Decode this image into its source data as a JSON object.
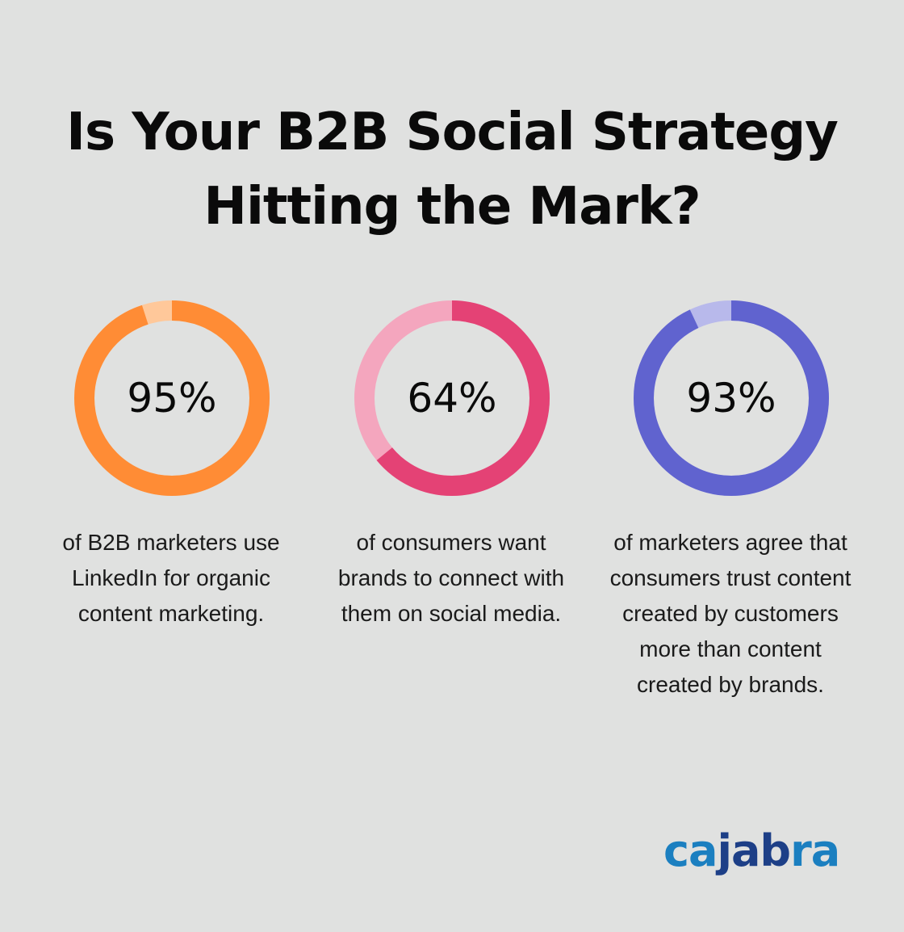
{
  "title": {
    "line1": "Is Your B2B Social Strategy",
    "line2": "Hitting the Mark?"
  },
  "stats": [
    {
      "value": "95%",
      "percent": 95,
      "color": "#ff8c35",
      "track_color": "#ffc89a",
      "description": "of B2B marketers use LinkedIn for organic content marketing."
    },
    {
      "value": "64%",
      "percent": 64,
      "color": "#e44275",
      "track_color": "#f4a6be",
      "description": "of consumers want brands to connect with them on social media."
    },
    {
      "value": "93%",
      "percent": 93,
      "color": "#6063cf",
      "track_color": "#b8b9eb",
      "description": "of marketers agree that consumers trust content created by customers more than content created by brands."
    }
  ],
  "logo": {
    "part1": "ca",
    "part2": "jab",
    "part3": "ra",
    "light_color": "#1b7fc0",
    "dark_color": "#1d3f87"
  },
  "chart_data": {
    "type": "pie",
    "title": "Is Your B2B Social Strategy Hitting the Mark?",
    "categories": [
      "B2B marketers using LinkedIn for organic content marketing",
      "Consumers wanting brands to connect with them on social media",
      "Marketers agreeing consumers trust customer-created content more than brand-created content"
    ],
    "values": [
      95,
      64,
      93
    ],
    "unit": "%",
    "style": "donut"
  }
}
